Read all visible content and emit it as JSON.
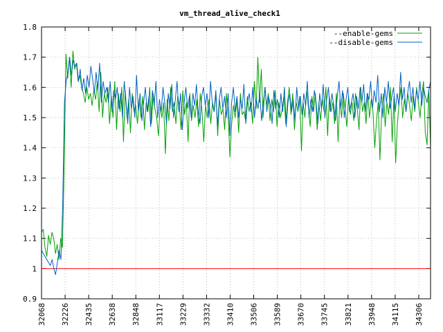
{
  "chart_data": {
    "type": "line",
    "title": "vm_thread_alive_check1",
    "xlabel": "",
    "ylabel": "",
    "ylim": [
      0.9,
      1.8
    ],
    "y_ticks": [
      "0.9",
      "1",
      "1.1",
      "1.2",
      "1.3",
      "1.4",
      "1.5",
      "1.6",
      "1.7",
      "1.8"
    ],
    "x_tick_labels": [
      "32068",
      "32226",
      "32435",
      "32638",
      "32848",
      "33117",
      "33229",
      "33332",
      "33410",
      "33506",
      "33589",
      "33670",
      "33745",
      "33821",
      "33948",
      "34115",
      "34306"
    ],
    "grid": true,
    "legend_position": "top-right",
    "reference_line": {
      "value": 1.0,
      "color": "#ff0000"
    },
    "series": [
      {
        "name": "--enable-gems",
        "color": "#00a000",
        "values": [
          1.12,
          1.13,
          1.07,
          1.04,
          1.11,
          1.08,
          1.12,
          1.1,
          1.05,
          1.08,
          1.03,
          1.1,
          1.07,
          1.35,
          1.71,
          1.63,
          1.7,
          1.6,
          1.72,
          1.66,
          1.68,
          1.62,
          1.64,
          1.6,
          1.58,
          1.55,
          1.6,
          1.56,
          1.58,
          1.54,
          1.59,
          1.56,
          1.62,
          1.52,
          1.65,
          1.5,
          1.58,
          1.55,
          1.6,
          1.48,
          1.57,
          1.5,
          1.62,
          1.46,
          1.58,
          1.52,
          1.6,
          1.42,
          1.59,
          1.5,
          1.56,
          1.45,
          1.58,
          1.52,
          1.54,
          1.48,
          1.56,
          1.5,
          1.57,
          1.46,
          1.55,
          1.52,
          1.6,
          1.48,
          1.58,
          1.53,
          1.5,
          1.44,
          1.54,
          1.5,
          1.55,
          1.38,
          1.56,
          1.49,
          1.6,
          1.52,
          1.55,
          1.48,
          1.57,
          1.54,
          1.46,
          1.59,
          1.51,
          1.55,
          1.42,
          1.58,
          1.49,
          1.54,
          1.5,
          1.56,
          1.47,
          1.58,
          1.52,
          1.42,
          1.54,
          1.5,
          1.56,
          1.48,
          1.55,
          1.52,
          1.58,
          1.44,
          1.56,
          1.51,
          1.53,
          1.46,
          1.58,
          1.5,
          1.37,
          1.48,
          1.54,
          1.5,
          1.56,
          1.45,
          1.58,
          1.51,
          1.52,
          1.49,
          1.57,
          1.52,
          1.55,
          1.48,
          1.62,
          1.53,
          1.7,
          1.55,
          1.66,
          1.5,
          1.6,
          1.54,
          1.58,
          1.49,
          1.56,
          1.52,
          1.59,
          1.47,
          1.55,
          1.5,
          1.53,
          1.57,
          1.48,
          1.55,
          1.6,
          1.51,
          1.58,
          1.46,
          1.55,
          1.52,
          1.57,
          1.39,
          1.55,
          1.5,
          1.59,
          1.53,
          1.47,
          1.57,
          1.52,
          1.58,
          1.46,
          1.55,
          1.49,
          1.56,
          1.52,
          1.6,
          1.44,
          1.57,
          1.52,
          1.55,
          1.48,
          1.58,
          1.42,
          1.56,
          1.5,
          1.58,
          1.53,
          1.47,
          1.57,
          1.51,
          1.55,
          1.49,
          1.58,
          1.53,
          1.46,
          1.6,
          1.52,
          1.55,
          1.48,
          1.58,
          1.5,
          1.56,
          1.52,
          1.4,
          1.49,
          1.55,
          1.36,
          1.52,
          1.58,
          1.47,
          1.55,
          1.51,
          1.6,
          1.42,
          1.57,
          1.35,
          1.48,
          1.55,
          1.6,
          1.5,
          1.56,
          1.52,
          1.58,
          1.54,
          1.49,
          1.57,
          1.52,
          1.6,
          1.55,
          1.5,
          1.58,
          1.62,
          1.45,
          1.41,
          1.59,
          1.4
        ]
      },
      {
        "name": "--disable-gems",
        "color": "#0060c0",
        "values": [
          1.06,
          1.05,
          1.04,
          1.03,
          1.02,
          1.01,
          1.03,
          1.0,
          0.98,
          1.02,
          1.06,
          1.03,
          1.2,
          1.55,
          1.62,
          1.65,
          1.7,
          1.64,
          1.69,
          1.67,
          1.68,
          1.62,
          1.66,
          1.59,
          1.63,
          1.58,
          1.64,
          1.6,
          1.67,
          1.63,
          1.58,
          1.65,
          1.59,
          1.68,
          1.55,
          1.62,
          1.58,
          1.6,
          1.55,
          1.62,
          1.52,
          1.59,
          1.56,
          1.6,
          1.53,
          1.58,
          1.5,
          1.62,
          1.55,
          1.48,
          1.6,
          1.53,
          1.57,
          1.5,
          1.64,
          1.52,
          1.58,
          1.49,
          1.55,
          1.6,
          1.52,
          1.57,
          1.47,
          1.59,
          1.54,
          1.62,
          1.5,
          1.56,
          1.52,
          1.6,
          1.55,
          1.48,
          1.58,
          1.53,
          1.61,
          1.5,
          1.56,
          1.62,
          1.52,
          1.58,
          1.46,
          1.55,
          1.6,
          1.53,
          1.57,
          1.5,
          1.58,
          1.54,
          1.61,
          1.52,
          1.48,
          1.57,
          1.6,
          1.54,
          1.58,
          1.5,
          1.62,
          1.55,
          1.52,
          1.59,
          1.47,
          1.56,
          1.6,
          1.53,
          1.57,
          1.5,
          1.58,
          1.44,
          1.55,
          1.6,
          1.52,
          1.57,
          1.5,
          1.56,
          1.53,
          1.61,
          1.48,
          1.55,
          1.58,
          1.52,
          1.6,
          1.5,
          1.56,
          1.53,
          1.58,
          1.49,
          1.55,
          1.6,
          1.52,
          1.57,
          1.54,
          1.48,
          1.59,
          1.53,
          1.56,
          1.5,
          1.58,
          1.52,
          1.6,
          1.47,
          1.55,
          1.58,
          1.52,
          1.56,
          1.49,
          1.6,
          1.53,
          1.57,
          1.51,
          1.58,
          1.54,
          1.62,
          1.5,
          1.56,
          1.52,
          1.59,
          1.55,
          1.48,
          1.58,
          1.53,
          1.61,
          1.5,
          1.56,
          1.6,
          1.52,
          1.58,
          1.54,
          1.49,
          1.57,
          1.62,
          1.53,
          1.59,
          1.5,
          1.56,
          1.6,
          1.52,
          1.55,
          1.58,
          1.5,
          1.57,
          1.53,
          1.6,
          1.55,
          1.61,
          1.52,
          1.58,
          1.56,
          1.62,
          1.53,
          1.59,
          1.55,
          1.64,
          1.52,
          1.58,
          1.5,
          1.6,
          1.55,
          1.62,
          1.53,
          1.57,
          1.6,
          1.52,
          1.58,
          1.54,
          1.65,
          1.56,
          1.6,
          1.52,
          1.58,
          1.62,
          1.55,
          1.6,
          1.53,
          1.59,
          1.56,
          1.62,
          1.54,
          1.6,
          1.57,
          1.55,
          1.59,
          1.62
        ]
      }
    ]
  }
}
